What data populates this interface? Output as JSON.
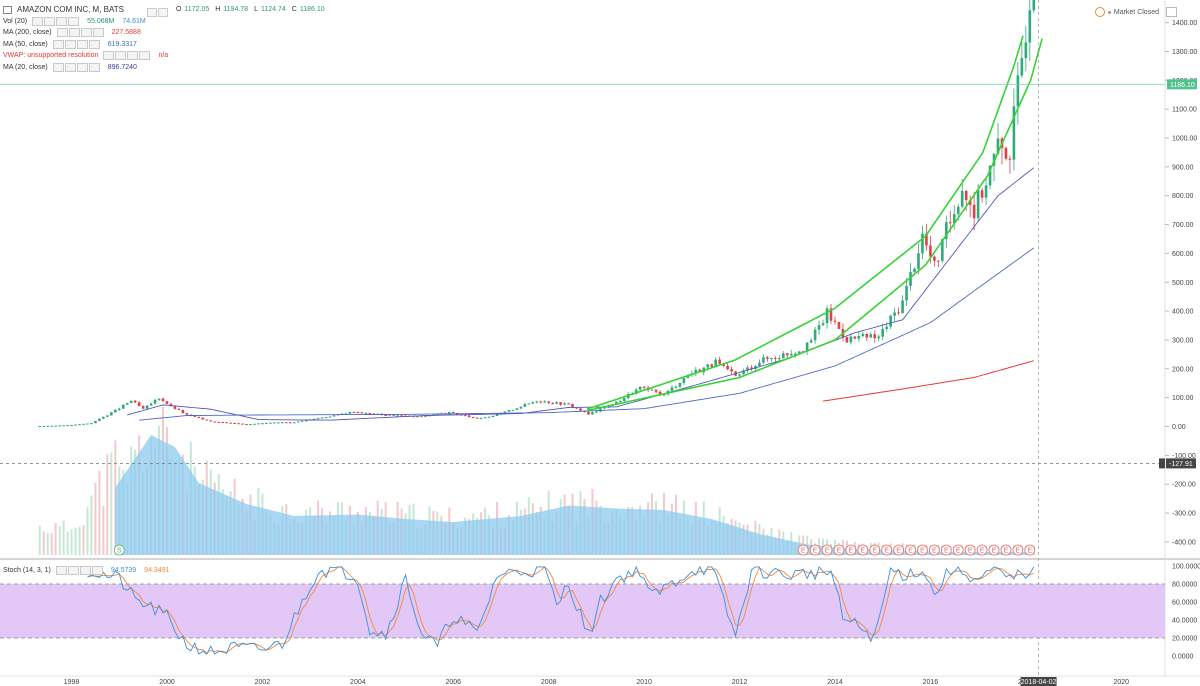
{
  "header": {
    "symbol_title": "AMAZON COM INC, M, BATS",
    "ohlc": [
      {
        "k": "O",
        "v": "1172.05"
      },
      {
        "k": "H",
        "v": "1194.78"
      },
      {
        "k": "L",
        "v": "1124.74"
      },
      {
        "k": "C",
        "v": "1186.10"
      }
    ],
    "market_status": "Market Closed"
  },
  "indicators": [
    {
      "label": "Vol (20)",
      "values": [
        "55.068M",
        "74.61M"
      ],
      "colors": [
        "#2a9a6c",
        "#3d8fd6"
      ]
    },
    {
      "label": "MA (200, close)",
      "values": [
        "227.5888"
      ],
      "colors": [
        "#e53935"
      ]
    },
    {
      "label": "MA (50, close)",
      "values": [
        "619.3317"
      ],
      "colors": [
        "#3d6fb0"
      ]
    },
    {
      "label": "VWAP: unsupported resolution",
      "values": [
        "n/a"
      ],
      "colors": [
        "#e53935"
      ],
      "label_color": "#e53935"
    },
    {
      "label": "MA (20, close)",
      "values": [
        "896.7240"
      ],
      "colors": [
        "#3a3aa0"
      ]
    }
  ],
  "stoch_legend": {
    "label": "Stoch (14, 3, 1)",
    "values": [
      "94.5739",
      "94.3491"
    ],
    "colors": [
      "#3d8fd6",
      "#f08a3c"
    ]
  },
  "colors": {
    "up": "#2faa7a",
    "down": "#e0404a",
    "channel": "#35d335",
    "ma20": "#5555bb",
    "ma50": "#4c6cc0",
    "ma200": "#e53935",
    "vol_area": "#8ecbf0",
    "stoch_band": "#e3c8f7",
    "price_line": "#52c18e"
  },
  "chart_data": {
    "type": "candlestick",
    "interval": "monthly",
    "x_range": [
      "1996-07",
      "2020-12"
    ],
    "x_ticks": [
      "1998",
      "2000",
      "2002",
      "2004",
      "2006",
      "2008",
      "2010",
      "2012",
      "2014",
      "2016",
      "2018",
      "2020"
    ],
    "y_range": [
      -470,
      1440
    ],
    "y_ticks": [
      1400,
      1300,
      1200,
      1100,
      1000,
      900,
      800,
      700,
      600,
      500,
      400,
      300,
      200,
      100,
      0,
      -100,
      -200,
      -300,
      -400
    ],
    "y_tick_labels": [
      "1400.00",
      "1300.00",
      "1200.00",
      "1100.00",
      "1000.00",
      "900.00",
      "800.00",
      "700.00",
      "600.00",
      "500.00",
      "400.00",
      "300.00",
      "200.00",
      "100.00",
      "0.00",
      "-100.00",
      "-200.00",
      "-300.00",
      "-400.00"
    ],
    "last_price": 1186.1,
    "last_price_label": "1186.10",
    "crosshair_value": -127.91,
    "crosshair_label": "-127.91",
    "cursor_date_label": "2018-04-02",
    "cursor_date": "2018-04-02",
    "price_anchors": [
      [
        "1997-05",
        1.5
      ],
      [
        "1998-01",
        5
      ],
      [
        "1998-06",
        12
      ],
      [
        "1998-12",
        55
      ],
      [
        "1999-04",
        90
      ],
      [
        "1999-07",
        60
      ],
      [
        "1999-11",
        100
      ],
      [
        "2000-02",
        70
      ],
      [
        "2000-06",
        40
      ],
      [
        "2000-12",
        18
      ],
      [
        "2001-09",
        8
      ],
      [
        "2002-03",
        13
      ],
      [
        "2002-09",
        15
      ],
      [
        "2003-06",
        36
      ],
      [
        "2003-12",
        52
      ],
      [
        "2004-04",
        44
      ],
      [
        "2005-04",
        34
      ],
      [
        "2005-12",
        48
      ],
      [
        "2006-07",
        28
      ],
      [
        "2006-12",
        40
      ],
      [
        "2007-10",
        90
      ],
      [
        "2008-06",
        76
      ],
      [
        "2008-11",
        42
      ],
      [
        "2009-06",
        84
      ],
      [
        "2009-12",
        134
      ],
      [
        "2010-06",
        110
      ],
      [
        "2010-12",
        180
      ],
      [
        "2011-07",
        222
      ],
      [
        "2011-12",
        173
      ],
      [
        "2012-06",
        228
      ],
      [
        "2012-12",
        250
      ],
      [
        "2013-06",
        277
      ],
      [
        "2013-11",
        393
      ],
      [
        "2014-04",
        305
      ],
      [
        "2014-12",
        310
      ],
      [
        "2015-06",
        434
      ],
      [
        "2015-11",
        665
      ],
      [
        "2016-02",
        552
      ],
      [
        "2016-06",
        715
      ],
      [
        "2016-09",
        837
      ],
      [
        "2016-12",
        750
      ],
      [
        "2017-06",
        968
      ],
      [
        "2017-09",
        961
      ],
      [
        "2017-11",
        1176
      ],
      [
        "2018-02",
        1512
      ]
    ],
    "ma200_anchors": [
      [
        "2013-10",
        88
      ],
      [
        "2015-06",
        130
      ],
      [
        "2016-12",
        170
      ],
      [
        "2018-03",
        228
      ]
    ],
    "ma50_anchors": [
      [
        "1999-06",
        22
      ],
      [
        "2000-06",
        38
      ],
      [
        "2002-01",
        40
      ],
      [
        "2005-01",
        42
      ],
      [
        "2008-01",
        48
      ],
      [
        "2010-01",
        62
      ],
      [
        "2012-01",
        115
      ],
      [
        "2014-01",
        210
      ],
      [
        "2016-01",
        360
      ],
      [
        "2017-01",
        480
      ],
      [
        "2018-03",
        619
      ]
    ],
    "ma20_anchors": [
      [
        "1999-03",
        40
      ],
      [
        "1999-12",
        75
      ],
      [
        "2000-12",
        60
      ],
      [
        "2001-12",
        24
      ],
      [
        "2003-06",
        22
      ],
      [
        "2005-06",
        38
      ],
      [
        "2007-06",
        45
      ],
      [
        "2008-06",
        66
      ],
      [
        "2009-06",
        68
      ],
      [
        "2011-01",
        140
      ],
      [
        "2013-01",
        235
      ],
      [
        "2014-06",
        325
      ],
      [
        "2015-06",
        370
      ],
      [
        "2016-06",
        585
      ],
      [
        "2017-06",
        800
      ],
      [
        "2018-03",
        897
      ]
    ],
    "channel_upper": [
      [
        2008.8,
        60
      ],
      [
        2011.9,
        230
      ],
      [
        2014.0,
        410
      ],
      [
        2015.9,
        660
      ],
      [
        2017.1,
        950
      ],
      [
        2017.75,
        1250
      ],
      [
        2017.95,
        1360
      ]
    ],
    "channel_lower": [
      [
        2008.8,
        55
      ],
      [
        2012.0,
        170
      ],
      [
        2014.0,
        300
      ],
      [
        2015.9,
        560
      ],
      [
        2017.2,
        870
      ],
      [
        2018.1,
        1200
      ],
      [
        2018.35,
        1350
      ]
    ],
    "volume_area_anchors": [
      [
        "1998-12",
        0.45
      ],
      [
        "1999-09",
        0.8
      ],
      [
        "2000-03",
        0.72
      ],
      [
        "2000-09",
        0.48
      ],
      [
        "2001-09",
        0.34
      ],
      [
        "2002-09",
        0.26
      ],
      [
        "2004-01",
        0.27
      ],
      [
        "2005-01",
        0.24
      ],
      [
        "2006-01",
        0.22
      ],
      [
        "2007-06",
        0.26
      ],
      [
        "2008-06",
        0.33
      ],
      [
        "2009-06",
        0.31
      ],
      [
        "2010-06",
        0.3
      ],
      [
        "2011-06",
        0.24
      ],
      [
        "2012-06",
        0.14
      ],
      [
        "2013-06",
        0.07
      ],
      [
        "2014-06",
        0.04
      ],
      [
        "2015-06",
        0.03
      ],
      [
        "2016-06",
        0.02
      ],
      [
        "2017-06",
        0.02
      ],
      [
        "2018-02",
        0.02
      ]
    ],
    "earnings_markers": [
      "2013-05",
      "2013-08",
      "2013-11",
      "2014-02",
      "2014-05",
      "2014-08",
      "2014-11",
      "2015-02",
      "2015-05",
      "2015-08",
      "2015-11",
      "2016-02",
      "2016-05",
      "2016-08",
      "2016-11",
      "2017-02",
      "2017-05",
      "2017-08",
      "2017-11",
      "2018-02"
    ],
    "earnings_marker_label": "E",
    "split_marker": {
      "date": "1999-01",
      "label": "S"
    },
    "stochastic": {
      "range": [
        0,
        100
      ],
      "ticks": [
        100,
        80,
        60,
        40,
        20,
        0
      ],
      "tick_labels": [
        "100.0000",
        "80.0000",
        "60.0000",
        "40.0000",
        "20.0000",
        "0.0000"
      ],
      "band": [
        20,
        80
      ],
      "k_anchors": [
        [
          "1998-05",
          95
        ],
        [
          "1998-09",
          90
        ],
        [
          "1999-01",
          86
        ],
        [
          "1999-05",
          62
        ],
        [
          "1999-09",
          54
        ],
        [
          "2000-01",
          43
        ],
        [
          "2000-06",
          12
        ],
        [
          "2000-12",
          4
        ],
        [
          "2001-06",
          9
        ],
        [
          "2002-01",
          7
        ],
        [
          "2002-06",
          14
        ],
        [
          "2002-12",
          70
        ],
        [
          "2003-03",
          95
        ],
        [
          "2003-09",
          96
        ],
        [
          "2004-01",
          86
        ],
        [
          "2004-04",
          30
        ],
        [
          "2004-08",
          24
        ],
        [
          "2005-01",
          86
        ],
        [
          "2005-05",
          26
        ],
        [
          "2005-09",
          10
        ],
        [
          "2006-01",
          46
        ],
        [
          "2006-07",
          24
        ],
        [
          "2006-12",
          90
        ],
        [
          "2007-06",
          95
        ],
        [
          "2007-12",
          96
        ],
        [
          "2008-03",
          55
        ],
        [
          "2008-06",
          82
        ],
        [
          "2008-11",
          22
        ],
        [
          "2009-02",
          60
        ],
        [
          "2009-06",
          86
        ],
        [
          "2009-12",
          96
        ],
        [
          "2010-03",
          66
        ],
        [
          "2010-08",
          80
        ],
        [
          "2011-01",
          96
        ],
        [
          "2011-06",
          98
        ],
        [
          "2011-12",
          22
        ],
        [
          "2012-04",
          96
        ],
        [
          "2012-10",
          92
        ],
        [
          "2013-01",
          90
        ],
        [
          "2013-06",
          92
        ],
        [
          "2013-12",
          94
        ],
        [
          "2014-03",
          42
        ],
        [
          "2014-08",
          30
        ],
        [
          "2014-11",
          20
        ],
        [
          "2015-03",
          95
        ],
        [
          "2015-07",
          90
        ],
        [
          "2015-11",
          97
        ],
        [
          "2016-02",
          68
        ],
        [
          "2016-06",
          97
        ],
        [
          "2016-10",
          92
        ],
        [
          "2017-01",
          84
        ],
        [
          "2017-05",
          96
        ],
        [
          "2017-09",
          84
        ],
        [
          "2017-12",
          92
        ],
        [
          "2018-03",
          95
        ]
      ]
    }
  }
}
